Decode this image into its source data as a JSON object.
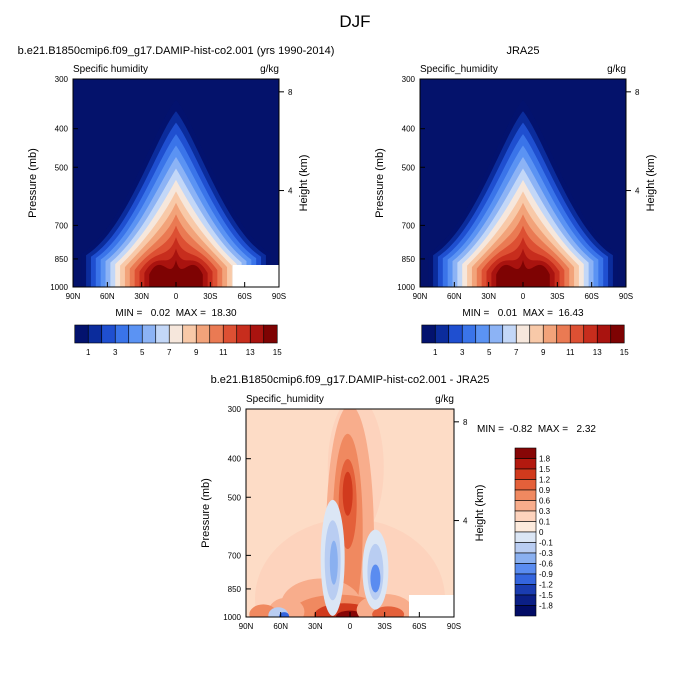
{
  "figure": {
    "title": "DJF"
  },
  "colorbars": {
    "top_tick_labels": [
      "1",
      "3",
      "5",
      "7",
      "9",
      "11",
      "13",
      "15"
    ],
    "top_colors": [
      "#03126e",
      "#0b2c9c",
      "#1f4fd0",
      "#3a74e9",
      "#5b93f3",
      "#8cb3f5",
      "#c3d7f7",
      "#f6e7dc",
      "#f8c9a8",
      "#f2a37a",
      "#ea7a53",
      "#dd5033",
      "#c72d1d",
      "#a9130f",
      "#7e0303"
    ],
    "diff_labels": [
      "1.8",
      "1.5",
      "1.2",
      "0.9",
      "0.6",
      "0.3",
      "0.1",
      "0",
      "-0.1",
      "-0.3",
      "-0.6",
      "-0.9",
      "-1.2",
      "-1.5",
      "-1.8"
    ],
    "diff_colors_top_to_bottom": [
      "#870606",
      "#b3190f",
      "#d13a1d",
      "#e4603a",
      "#f08960",
      "#f8ad8c",
      "#fdd3bd",
      "#fdebdd",
      "#dbe6f5",
      "#b9cdf2",
      "#8ab0f0",
      "#5a8cf0",
      "#3465de",
      "#1a3cb0",
      "#0b1f86",
      "#020c66"
    ]
  },
  "panels": [
    {
      "id": "model",
      "title": "b.e21.B1850cmip6.f09_g17.DAMIP-hist-co2.001 (yrs 1990-2014)",
      "left_label": "Specific humidity",
      "right_label": "g/kg",
      "ylabel": "Pressure (mb)",
      "y2label": "Height (km)",
      "stats": "MIN =   0.02  MAX =  18.30"
    },
    {
      "id": "obs",
      "title": "JRA25",
      "left_label": "Specific_humidity",
      "right_label": "g/kg",
      "ylabel": "Pressure (mb)",
      "y2label": "Height (km)",
      "stats": "MIN =   0.01  MAX =  16.43"
    },
    {
      "id": "diff",
      "title": "b.e21.B1850cmip6.f09_g17.DAMIP-hist-co2.001 - JRA25",
      "left_label": "Specific_humidity",
      "right_label": "g/kg",
      "ylabel": "Pressure (mb)",
      "y2label": "Height (km)",
      "stats": "MIN =  -0.82  MAX =   2.32"
    }
  ],
  "chart_data": [
    {
      "type": "heatmap",
      "title": "b.e21.B1850cmip6.f09_g17.DAMIP-hist-co2.001 (yrs 1990-2014)",
      "variable": "Specific humidity",
      "units": "g/kg",
      "xlabel": "",
      "ylabel": "Pressure (mb)",
      "y2label": "Height (km)",
      "x_ticks": [
        "90N",
        "60N",
        "30N",
        "0",
        "30S",
        "60S",
        "90S"
      ],
      "x_values": [
        90,
        60,
        30,
        0,
        -30,
        -60,
        -90
      ],
      "y_ticks": [
        "300",
        "400",
        "500",
        "700",
        "850",
        "1000"
      ],
      "y_values": [
        300,
        400,
        500,
        700,
        850,
        1000
      ],
      "y2_ticks": [
        "8",
        "4"
      ],
      "y2_values": [
        8,
        4
      ],
      "ylim": [
        1000,
        300
      ],
      "y_scale": "log",
      "levels": [
        1,
        2,
        3,
        4,
        5,
        6,
        7,
        8,
        9,
        10,
        11,
        12,
        13,
        14,
        15
      ],
      "peak": {
        "lat": 0,
        "pressure": 1000,
        "value": 18.3
      },
      "min": 0.02,
      "max": 18.3
    },
    {
      "type": "heatmap",
      "title": "JRA25",
      "variable": "Specific_humidity",
      "units": "g/kg",
      "xlabel": "",
      "ylabel": "Pressure (mb)",
      "y2label": "Height (km)",
      "x_ticks": [
        "90N",
        "60N",
        "30N",
        "0",
        "30S",
        "60S",
        "90S"
      ],
      "x_values": [
        90,
        60,
        30,
        0,
        -30,
        -60,
        -90
      ],
      "y_ticks": [
        "300",
        "400",
        "500",
        "700",
        "850",
        "1000"
      ],
      "y_values": [
        300,
        400,
        500,
        700,
        850,
        1000
      ],
      "y2_ticks": [
        "8",
        "4"
      ],
      "y2_values": [
        8,
        4
      ],
      "ylim": [
        1000,
        300
      ],
      "y_scale": "log",
      "levels": [
        1,
        2,
        3,
        4,
        5,
        6,
        7,
        8,
        9,
        10,
        11,
        12,
        13,
        14,
        15
      ],
      "peak": {
        "lat": 0,
        "pressure": 1000,
        "value": 16.43
      },
      "min": 0.01,
      "max": 16.43
    },
    {
      "type": "heatmap",
      "title": "b.e21.B1850cmip6.f09_g17.DAMIP-hist-co2.001 - JRA25",
      "variable": "Specific_humidity",
      "units": "g/kg",
      "xlabel": "",
      "ylabel": "Pressure (mb)",
      "y2label": "Height (km)",
      "x_ticks": [
        "90N",
        "60N",
        "30N",
        "0",
        "30S",
        "60S",
        "90S"
      ],
      "x_values": [
        90,
        60,
        30,
        0,
        -30,
        -60,
        -90
      ],
      "y_ticks": [
        "300",
        "400",
        "500",
        "700",
        "850",
        "1000"
      ],
      "y_values": [
        300,
        400,
        500,
        700,
        850,
        1000
      ],
      "y2_ticks": [
        "8",
        "4"
      ],
      "y2_values": [
        8,
        4
      ],
      "ylim": [
        1000,
        300
      ],
      "y_scale": "log",
      "levels": [
        -1.8,
        -1.5,
        -1.2,
        -0.9,
        -0.6,
        -0.3,
        -0.1,
        0,
        0.1,
        0.3,
        0.6,
        0.9,
        1.2,
        1.5,
        1.8
      ],
      "min": -0.82,
      "max": 2.32
    }
  ]
}
